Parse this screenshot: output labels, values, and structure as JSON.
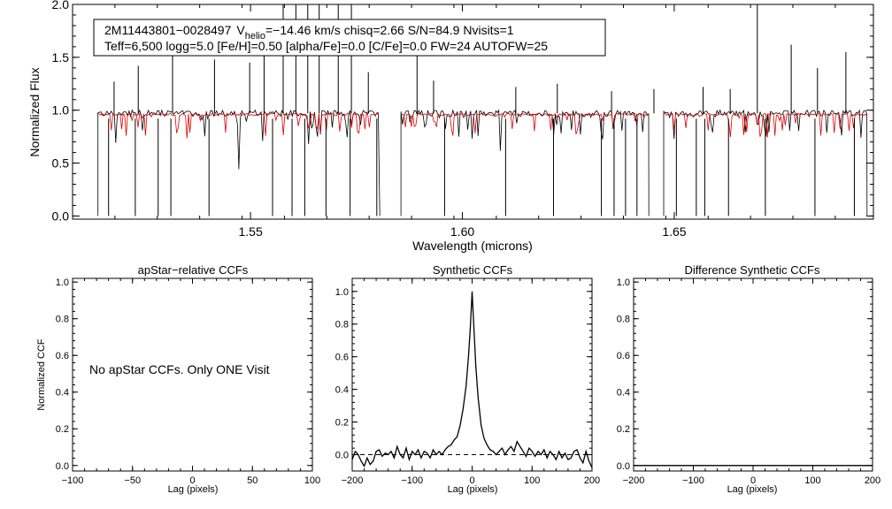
{
  "chart_data": [
    {
      "type": "line",
      "id": "spectrum",
      "info": {
        "star_id": "2M11443801−0028497",
        "v_label": "V",
        "v_sub": "helio",
        "v_rest": "=−14.46 km/s  chisq=2.66  S/N=84.9  Nvisits=1",
        "line2": "Teff=6,500 logg=5.0 [Fe/H]=0.50 [alpha/Fe]=0.0 [C/Fe]=0.0 FW=24 AUTOFW=25"
      },
      "xlabel": "Wavelength (microns)",
      "ylabel": "Normalized Flux",
      "xlim": [
        1.508,
        1.697
      ],
      "ylim": [
        -0.03,
        2.0
      ],
      "xticks": [
        1.55,
        1.6,
        1.65
      ],
      "xtick_labels": [
        "1.55",
        "1.60",
        "1.65"
      ],
      "yticks": [
        0.0,
        0.5,
        1.0,
        1.5,
        2.0
      ],
      "ytick_labels": [
        "0.0",
        "0.5",
        "1.0",
        "1.5",
        "2.0"
      ],
      "chips": [
        [
          1.514,
          1.5805
        ],
        [
          1.5855,
          1.644
        ],
        [
          1.6475,
          1.6955
        ]
      ],
      "continuum": 0.97,
      "model_continuum": 0.96,
      "series": [
        {
          "name": "Observed spectrum",
          "color": "#000000"
        },
        {
          "name": "Synthetic model",
          "color": "#dd0000"
        }
      ],
      "spikes_up": [
        [
          1.5178,
          1.27
        ],
        [
          1.5235,
          1.42
        ],
        [
          1.5316,
          1.55
        ],
        [
          1.5415,
          1.48
        ],
        [
          1.5498,
          1.45
        ],
        [
          1.5532,
          1.72
        ],
        [
          1.5577,
          2.0
        ],
        [
          1.5607,
          2.0
        ],
        [
          1.5635,
          2.0
        ],
        [
          1.5662,
          2.0
        ],
        [
          1.5707,
          2.0
        ],
        [
          1.5738,
          2.0
        ],
        [
          1.5778,
          1.36
        ],
        [
          1.5893,
          1.55
        ],
        [
          1.5932,
          1.28
        ],
        [
          1.6126,
          1.22
        ],
        [
          1.6224,
          1.25
        ],
        [
          1.6352,
          1.18
        ],
        [
          1.6452,
          1.2
        ],
        [
          1.6568,
          1.22
        ],
        [
          1.6632,
          1.2
        ],
        [
          1.6696,
          2.0
        ],
        [
          1.6776,
          1.62
        ],
        [
          1.6838,
          1.4
        ],
        [
          1.6905,
          1.55
        ]
      ],
      "drops": [
        1.5165,
        1.5228,
        1.5282,
        1.5312,
        1.5402,
        1.5552,
        1.5598,
        1.5628,
        1.5678,
        1.5735,
        1.5798,
        1.5958,
        1.6102,
        1.6215,
        1.6328,
        1.6358,
        1.6385,
        1.6412,
        1.6505,
        1.6552,
        1.6572,
        1.6628,
        1.6715,
        1.6832,
        1.6925
      ]
    },
    {
      "type": "line",
      "id": "apstar-ccf",
      "title": "apStar−relative CCFs",
      "xlabel": "Lag (pixels)",
      "ylabel": "Normalized CCF",
      "xlim": [
        -100,
        100
      ],
      "ylim": [
        -0.03,
        1.02
      ],
      "xticks": [
        -100,
        -50,
        0,
        50,
        100
      ],
      "xtick_labels": [
        "−100",
        "−50",
        "0",
        "50",
        "100"
      ],
      "yticks": [
        0.0,
        0.2,
        0.4,
        0.6,
        0.8,
        1.0
      ],
      "ytick_labels": [
        "0.0",
        "0.2",
        "0.4",
        "0.6",
        "0.8",
        "1.0"
      ],
      "annotation": "No apStar CCFs.  Only ONE Visit",
      "series": []
    },
    {
      "type": "line",
      "id": "synthetic-ccf",
      "title": "Synthetic CCFs",
      "xlabel": "Lag (pixels)",
      "xlim": [
        -200,
        200
      ],
      "ylim": [
        -0.1,
        1.08
      ],
      "xticks": [
        -200,
        -100,
        0,
        100,
        200
      ],
      "xtick_labels": [
        "−200",
        "−100",
        "0",
        "100",
        "200"
      ],
      "yticks": [
        0.0,
        0.2,
        0.4,
        0.6,
        0.8,
        1.0
      ],
      "ytick_labels": [
        "0.0",
        "0.2",
        "0.4",
        "0.6",
        "0.8",
        "1.0"
      ],
      "reference_line": 0.0,
      "series": [
        {
          "name": "CCF",
          "x": [
            -200,
            -195,
            -190,
            -185,
            -180,
            -175,
            -170,
            -165,
            -160,
            -155,
            -150,
            -145,
            -140,
            -135,
            -130,
            -125,
            -120,
            -115,
            -110,
            -105,
            -100,
            -95,
            -90,
            -85,
            -80,
            -75,
            -70,
            -65,
            -60,
            -55,
            -50,
            -45,
            -40,
            -35,
            -30,
            -25,
            -20,
            -15,
            -10,
            -6,
            -3,
            -1,
            0,
            1,
            3,
            6,
            10,
            15,
            20,
            25,
            30,
            35,
            40,
            45,
            50,
            55,
            60,
            65,
            70,
            75,
            80,
            85,
            90,
            95,
            100,
            105,
            110,
            115,
            120,
            125,
            130,
            135,
            140,
            145,
            150,
            155,
            160,
            165,
            170,
            175,
            180,
            185,
            190,
            195,
            200
          ],
          "y": [
            -0.03,
            0.02,
            0.0,
            -0.04,
            -0.07,
            -0.02,
            -0.06,
            -0.04,
            0.02,
            0.03,
            -0.01,
            0.01,
            0.0,
            0.02,
            -0.02,
            0.05,
            0.0,
            -0.02,
            0.04,
            -0.03,
            0.02,
            0.0,
            0.03,
            -0.02,
            0.02,
            0.01,
            -0.02,
            0.03,
            0.0,
            0.02,
            0.0,
            0.03,
            0.05,
            0.06,
            0.09,
            0.11,
            0.18,
            0.28,
            0.42,
            0.6,
            0.78,
            0.92,
            1.0,
            0.92,
            0.78,
            0.55,
            0.35,
            0.18,
            0.1,
            0.06,
            0.03,
            0.02,
            0.0,
            0.02,
            0.04,
            0.0,
            0.03,
            0.05,
            0.02,
            0.08,
            0.05,
            0.02,
            -0.01,
            0.04,
            0.02,
            -0.01,
            0.02,
            0.0,
            0.03,
            -0.02,
            0.02,
            0.0,
            -0.03,
            0.02,
            -0.02,
            0.01,
            -0.03,
            -0.02,
            0.02,
            0.03,
            -0.02,
            -0.05,
            0.02,
            -0.04,
            -0.08
          ]
        }
      ]
    },
    {
      "type": "line",
      "id": "difference-ccf",
      "title": "Difference Synthetic CCFs",
      "xlabel": "Lag (pixels)",
      "xlim": [
        -200,
        200
      ],
      "ylim": [
        -0.03,
        1.02
      ],
      "xticks": [
        -200,
        -100,
        0,
        100,
        200
      ],
      "xtick_labels": [
        "−200",
        "−100",
        "0",
        "100",
        "200"
      ],
      "yticks": [
        0.0,
        0.2,
        0.4,
        0.6,
        0.8,
        1.0
      ],
      "ytick_labels": [
        "0.0",
        "0.2",
        "0.4",
        "0.6",
        "0.8",
        "1.0"
      ],
      "series": [
        {
          "name": "Difference CCF",
          "x": [
            -200,
            200
          ],
          "y": [
            0.0,
            0.0
          ]
        }
      ]
    }
  ]
}
